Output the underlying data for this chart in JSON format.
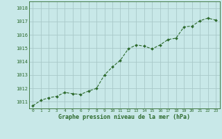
{
  "x": [
    0,
    1,
    2,
    3,
    4,
    5,
    6,
    7,
    8,
    9,
    10,
    11,
    12,
    13,
    14,
    15,
    16,
    17,
    18,
    19,
    20,
    21,
    22,
    23
  ],
  "y": [
    1010.7,
    1011.1,
    1011.3,
    1011.4,
    1011.7,
    1011.6,
    1011.55,
    1011.8,
    1012.0,
    1013.0,
    1013.6,
    1014.1,
    1014.95,
    1015.25,
    1015.15,
    1014.95,
    1015.25,
    1015.65,
    1015.75,
    1016.6,
    1016.65,
    1017.05,
    1017.25,
    1017.1
  ],
  "xlim": [
    -0.5,
    23.5
  ],
  "ylim": [
    1010.5,
    1018.5
  ],
  "yticks": [
    1011,
    1012,
    1013,
    1014,
    1015,
    1016,
    1017,
    1018
  ],
  "xticks": [
    0,
    1,
    2,
    3,
    4,
    5,
    6,
    7,
    8,
    9,
    10,
    11,
    12,
    13,
    14,
    15,
    16,
    17,
    18,
    19,
    20,
    21,
    22,
    23
  ],
  "line_color": "#2d6a2d",
  "marker_color": "#2d6a2d",
  "bg_color": "#c8e8e8",
  "grid_color": "#a8c8c8",
  "xlabel": "Graphe pression niveau de la mer (hPa)",
  "xlabel_color": "#2d6a2d",
  "tick_label_color": "#2d6a2d",
  "axis_color": "#2d6a2d"
}
